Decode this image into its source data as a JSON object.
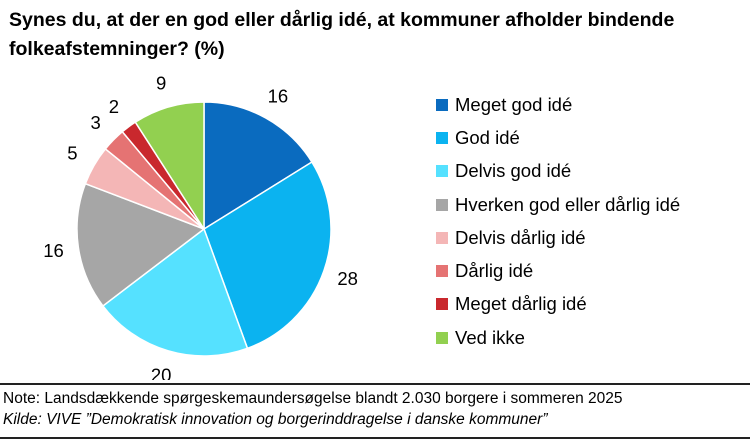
{
  "chart_data": {
    "type": "pie",
    "title": "Synes du, at der en god eller dårlig idé, at kommuner afholder bindende folkeafstemninger? (%)",
    "slices": [
      {
        "name": "Meget god idé",
        "value": 16,
        "label": "16",
        "color": "#0A6BBF"
      },
      {
        "name": "God idé",
        "value": 28,
        "label": "28",
        "color": "#0BB3F0"
      },
      {
        "name": "Delvis god idé",
        "value": 20,
        "label": "20",
        "color": "#55E1FF"
      },
      {
        "name": "Hverken god eller dårlig idé",
        "value": 16,
        "label": "16",
        "color": "#A6A6A6"
      },
      {
        "name": "Delvis dårlig idé",
        "value": 5,
        "label": "5",
        "color": "#F4B6B6"
      },
      {
        "name": "Dårlig idé",
        "value": 3,
        "label": "3",
        "color": "#E57373"
      },
      {
        "name": "Meget dårlig idé",
        "value": 2,
        "label": "2",
        "color": "#C9282D"
      },
      {
        "name": "Ved ikke",
        "value": 9,
        "label": "9",
        "color": "#92D050"
      }
    ],
    "legend_position": "right",
    "note": "Note: Landsdækkende spørgeskemaundersøgelse blandt 2.030 borgere i sommeren 2025",
    "source": "Kilde: VIVE ”Demokratisk innovation og borgerinddragelse i danske kommuner”"
  }
}
